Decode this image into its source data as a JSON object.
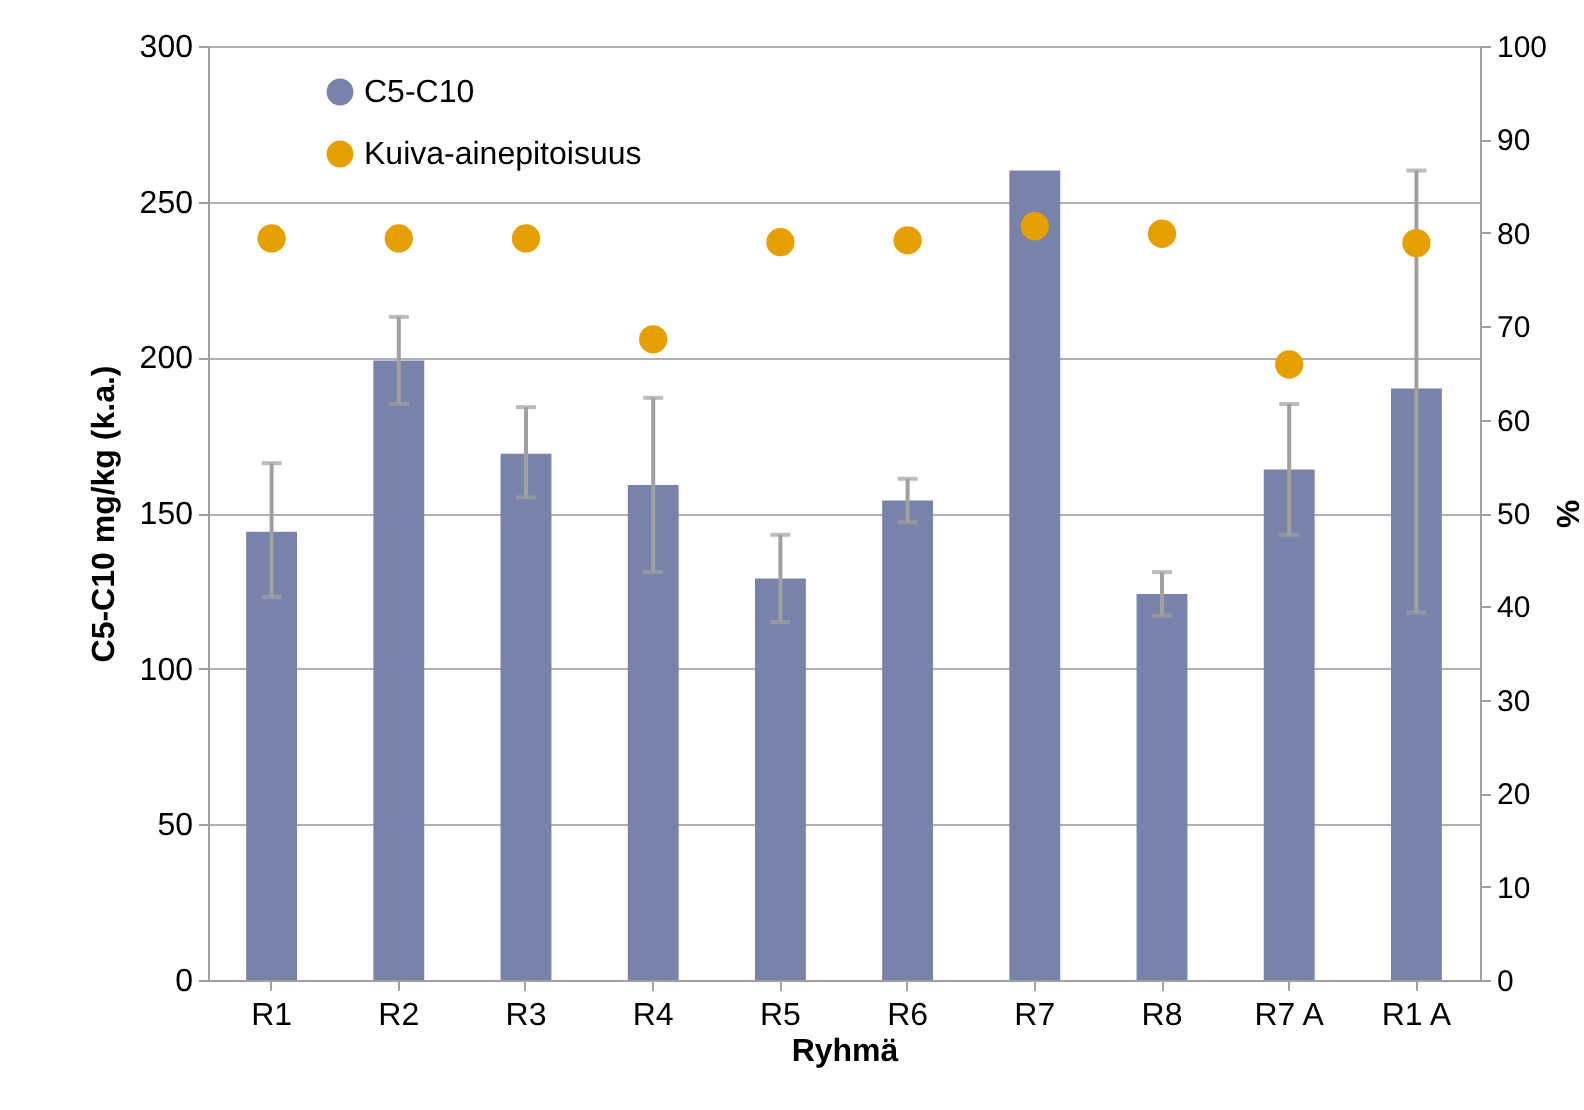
{
  "chart_data": {
    "type": "bar",
    "xlabel": "Ryhmä",
    "ylabel": "C5-C10 mg/kg (k.a.)",
    "y2label": "%",
    "categories": [
      "R1",
      "R2",
      "R3",
      "R4",
      "R5",
      "R6",
      "R7",
      "R8",
      "R7 A",
      "R1 A"
    ],
    "ylim": [
      0,
      300
    ],
    "yticks": [
      0,
      50,
      100,
      150,
      200,
      250,
      300
    ],
    "y2lim": [
      0,
      100
    ],
    "y2ticks": [
      0,
      10,
      20,
      30,
      40,
      50,
      60,
      70,
      80,
      90,
      100
    ],
    "grid": "y",
    "legend": "top left",
    "marker": "circle",
    "series": [
      {
        "name": "C5-C10",
        "color": "#7982a9",
        "values": [
          144,
          199,
          169,
          159,
          129,
          154,
          260,
          124,
          164,
          190
        ],
        "errors": [
          [
            123,
            166
          ],
          [
            185,
            213
          ],
          [
            155,
            184
          ],
          [
            131,
            187
          ],
          [
            115,
            143
          ],
          [
            147,
            161
          ],
          null,
          [
            117,
            131
          ],
          [
            143,
            185
          ],
          [
            118,
            260
          ]
        ]
      },
      {
        "name": "Kuiva-ainepitoisuus",
        "type": "scatter",
        "axis": "y2",
        "color": "#e5a000",
        "values": [
          79.4,
          79.4,
          79.4,
          68.6,
          79.0,
          79.2,
          80.7,
          79.9,
          65.9,
          78.9
        ]
      }
    ]
  }
}
